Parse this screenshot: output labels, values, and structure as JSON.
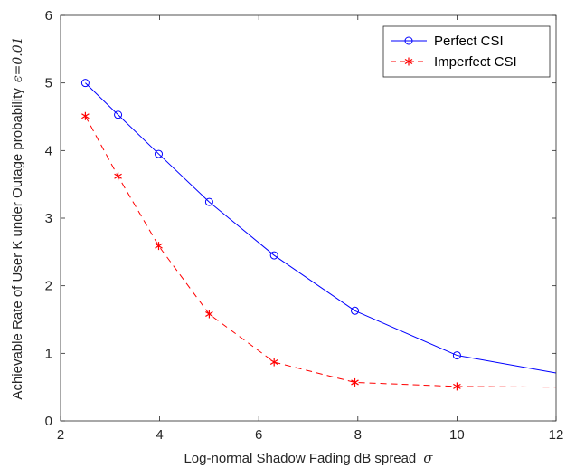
{
  "chart_data": {
    "type": "line",
    "xlabel": "Log-normal Shadow Fading dB spread",
    "xlabel_symbol": "σ",
    "ylabel": "Achievable Rate of User K under Outage probability",
    "ylabel_symbol": "ϵ=0.01",
    "xlim": [
      2,
      12
    ],
    "ylim": [
      0,
      6
    ],
    "xticks": [
      2,
      4,
      6,
      8,
      10,
      12
    ],
    "yticks": [
      0,
      1,
      2,
      3,
      4,
      5,
      6
    ],
    "grid": false,
    "legend_position": "top-right",
    "series": [
      {
        "name": "Perfect CSI",
        "color": "#0000ff",
        "line_style": "solid",
        "marker": "circle",
        "x": [
          2.5,
          3.16,
          3.98,
          5.0,
          6.31,
          7.94,
          10.0,
          12.0
        ],
        "y": [
          5.0,
          4.53,
          3.95,
          3.24,
          2.45,
          1.63,
          0.97,
          0.71
        ],
        "marker_x": [
          2.5,
          3.16,
          3.98,
          5.0,
          6.31,
          7.94,
          10.0
        ]
      },
      {
        "name": "Imperfect CSI",
        "color": "#ff0000",
        "line_style": "dashed",
        "marker": "asterisk",
        "x": [
          2.5,
          3.16,
          3.98,
          5.0,
          6.31,
          7.94,
          10.0,
          12.0
        ],
        "y": [
          4.51,
          3.62,
          2.59,
          1.58,
          0.87,
          0.57,
          0.51,
          0.5
        ],
        "marker_x": [
          2.5,
          3.16,
          3.98,
          5.0,
          6.31,
          7.94,
          10.0
        ]
      }
    ]
  }
}
